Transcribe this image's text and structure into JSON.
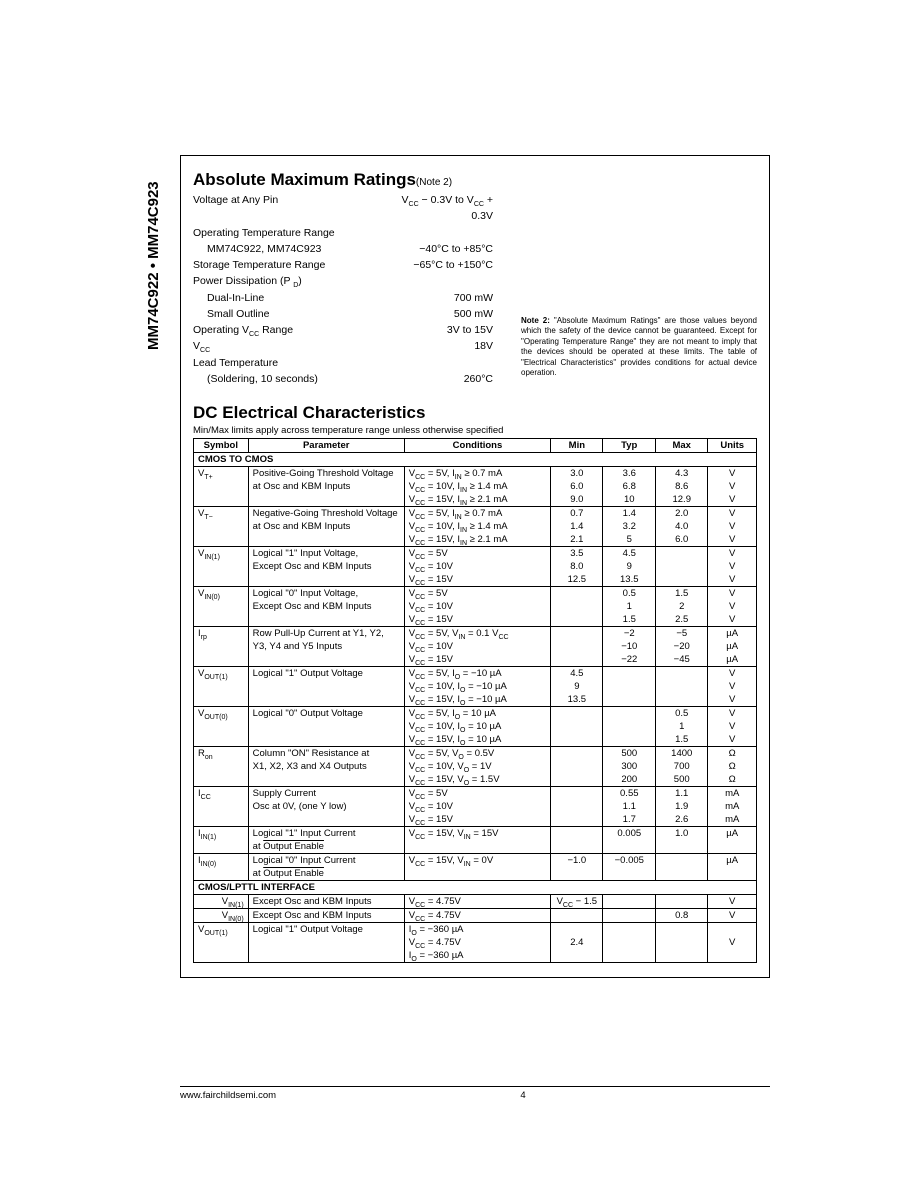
{
  "side_label": "MM74C922 • MM74C923",
  "amr": {
    "title": "Absolute Maximum Ratings",
    "note_ref": "(Note 2)",
    "rows": [
      {
        "label": "Voltage at Any Pin",
        "value_html": "V<sub>CC</sub> − 0.3V to V<sub>CC</sub> + 0.3V",
        "indent": 0
      },
      {
        "label": "Operating Temperature Range",
        "value_html": "",
        "indent": 0
      },
      {
        "label": "MM74C922, MM74C923",
        "value_html": "−40°C to +85°C",
        "indent": 1
      },
      {
        "label": "Storage Temperature Range",
        "value_html": "−65°C to +150°C",
        "indent": 0
      },
      {
        "label_html": "Power Dissipation (P <sub>D</sub>)",
        "value_html": "",
        "indent": 0
      },
      {
        "label": "Dual-In-Line",
        "value_html": "700 mW",
        "indent": 1
      },
      {
        "label": "Small Outline",
        "value_html": "500 mW",
        "indent": 1
      },
      {
        "label_html": "Operating V<sub>CC</sub> Range",
        "value_html": "3V to 15V",
        "indent": 0
      },
      {
        "label_html": "V<sub>CC</sub>",
        "value_html": "18V",
        "indent": 0
      },
      {
        "label": "Lead Temperature",
        "value_html": "",
        "indent": 0
      },
      {
        "label": "(Soldering, 10 seconds)",
        "value_html": "260°C",
        "indent": 1
      }
    ],
    "note2": "<b>Note 2:</b> \"Absolute Maximum Ratings\" are those values beyond which the safety of the device cannot be guaranteed. Except for \"Operating Temperature Range\" they are not meant to imply that the devices should be operated at these limits. The table of \"Electrical Characteristics\" provides conditions for actual device operation."
  },
  "dc": {
    "title": "DC Electrical Characteristics",
    "subhead": "Min/Max limits apply across temperature range unless otherwise specified",
    "headers": [
      "Symbol",
      "Parameter",
      "Conditions",
      "Min",
      "Typ",
      "Max",
      "Units"
    ],
    "groups": [
      {
        "title": "CMOS TO CMOS",
        "rows": [
          {
            "sym_html": "V<sub>T+</sub>",
            "param": "Positive-Going Threshold Voltage",
            "cond_html": "V<sub>CC</sub> = 5V, I<sub>IN</sub> ≥ 0.7 mA",
            "min": "3.0",
            "typ": "3.6",
            "max": "4.3",
            "unit": "V",
            "top": 1
          },
          {
            "sym_html": "",
            "param": "at Osc and KBM Inputs",
            "cond_html": "V<sub>CC</sub> = 10V, I<sub>IN</sub> ≥ 1.4 mA",
            "min": "6.0",
            "typ": "6.8",
            "max": "8.6",
            "unit": "V"
          },
          {
            "sym_html": "",
            "param": "",
            "cond_html": "V<sub>CC</sub> = 15V, I<sub>IN</sub> ≥ 2.1 mA",
            "min": "9.0",
            "typ": "10",
            "max": "12.9",
            "unit": "V"
          },
          {
            "sym_html": "V<sub>T−</sub>",
            "param": "Negative-Going Threshold Voltage",
            "cond_html": "V<sub>CC</sub> = 5V, I<sub>IN</sub> ≥ 0.7 mA",
            "min": "0.7",
            "typ": "1.4",
            "max": "2.0",
            "unit": "V",
            "top": 1
          },
          {
            "sym_html": "",
            "param": "at Osc and KBM Inputs",
            "cond_html": "V<sub>CC</sub> = 10V, I<sub>IN</sub> ≥ 1.4 mA",
            "min": "1.4",
            "typ": "3.2",
            "max": "4.0",
            "unit": "V"
          },
          {
            "sym_html": "",
            "param": "",
            "cond_html": "V<sub>CC</sub> = 15V, I<sub>IN</sub> ≥ 2.1 mA",
            "min": "2.1",
            "typ": "5",
            "max": "6.0",
            "unit": "V"
          },
          {
            "sym_html": "V<sub>IN(1)</sub>",
            "param": "Logical \"1\" Input Voltage,",
            "cond_html": "V<sub>CC</sub> = 5V",
            "min": "3.5",
            "typ": "4.5",
            "max": "",
            "unit": "V",
            "top": 1
          },
          {
            "sym_html": "",
            "param": "Except Osc and KBM Inputs",
            "cond_html": "V<sub>CC</sub> = 10V",
            "min": "8.0",
            "typ": "9",
            "max": "",
            "unit": "V"
          },
          {
            "sym_html": "",
            "param": "",
            "cond_html": "V<sub>CC</sub> = 15V",
            "min": "12.5",
            "typ": "13.5",
            "max": "",
            "unit": "V"
          },
          {
            "sym_html": "V<sub>IN(0)</sub>",
            "param": "Logical \"0\" Input Voltage,",
            "cond_html": "V<sub>CC</sub> = 5V",
            "min": "",
            "typ": "0.5",
            "max": "1.5",
            "unit": "V",
            "top": 1
          },
          {
            "sym_html": "",
            "param": "Except Osc and KBM Inputs",
            "cond_html": "V<sub>CC</sub> = 10V",
            "min": "",
            "typ": "1",
            "max": "2",
            "unit": "V"
          },
          {
            "sym_html": "",
            "param": "",
            "cond_html": "V<sub>CC</sub> = 15V",
            "min": "",
            "typ": "1.5",
            "max": "2.5",
            "unit": "V"
          },
          {
            "sym_html": "I<sub>rp</sub>",
            "param": "Row Pull-Up Current at Y1, Y2,",
            "cond_html": "V<sub>CC</sub> = 5V, V<sub>IN</sub> = 0.1 V<sub>CC</sub>",
            "min": "",
            "typ": "−2",
            "max": "−5",
            "unit": "µA",
            "top": 1
          },
          {
            "sym_html": "",
            "param": "Y3, Y4 and Y5 Inputs",
            "cond_html": "V<sub>CC</sub> = 10V",
            "min": "",
            "typ": "−10",
            "max": "−20",
            "unit": "µA"
          },
          {
            "sym_html": "",
            "param": "",
            "cond_html": "V<sub>CC</sub> = 15V",
            "min": "",
            "typ": "−22",
            "max": "−45",
            "unit": "µA"
          },
          {
            "sym_html": "V<sub>OUT(1)</sub>",
            "param": "Logical \"1\" Output Voltage",
            "cond_html": "V<sub>CC</sub> = 5V, I<sub>O</sub> = −10 µA",
            "min": "4.5",
            "typ": "",
            "max": "",
            "unit": "V",
            "top": 1
          },
          {
            "sym_html": "",
            "param": "",
            "cond_html": "V<sub>CC</sub> = 10V, I<sub>O</sub> = −10 µA",
            "min": "9",
            "typ": "",
            "max": "",
            "unit": "V"
          },
          {
            "sym_html": "",
            "param": "",
            "cond_html": "V<sub>CC</sub> = 15V, I<sub>O</sub> = −10 µA",
            "min": "13.5",
            "typ": "",
            "max": "",
            "unit": "V"
          },
          {
            "sym_html": "V<sub>OUT(0)</sub>",
            "param": "Logical \"0\" Output Voltage",
            "cond_html": "V<sub>CC</sub> = 5V, I<sub>O</sub> = 10 µA",
            "min": "",
            "typ": "",
            "max": "0.5",
            "unit": "V",
            "top": 1
          },
          {
            "sym_html": "",
            "param": "",
            "cond_html": "V<sub>CC</sub> = 10V, I<sub>O</sub> = 10 µA",
            "min": "",
            "typ": "",
            "max": "1",
            "unit": "V"
          },
          {
            "sym_html": "",
            "param": "",
            "cond_html": "V<sub>CC</sub> = 15V, I<sub>O</sub> = 10 µA",
            "min": "",
            "typ": "",
            "max": "1.5",
            "unit": "V"
          },
          {
            "sym_html": "R<sub>on</sub>",
            "param": "Column \"ON\" Resistance at",
            "cond_html": "V<sub>CC</sub> = 5V, V<sub>O</sub> = 0.5V",
            "min": "",
            "typ": "500",
            "max": "1400",
            "unit": "Ω",
            "top": 1
          },
          {
            "sym_html": "",
            "param": "X1, X2, X3 and X4 Outputs",
            "cond_html": "V<sub>CC</sub> = 10V, V<sub>O</sub> = 1V",
            "min": "",
            "typ": "300",
            "max": "700",
            "unit": "Ω"
          },
          {
            "sym_html": "",
            "param": "",
            "cond_html": "V<sub>CC</sub> = 15V, V<sub>O</sub> = 1.5V",
            "min": "",
            "typ": "200",
            "max": "500",
            "unit": "Ω"
          },
          {
            "sym_html": "I<sub>CC</sub>",
            "param": "Supply Current",
            "cond_html": "V<sub>CC</sub> = 5V",
            "min": "",
            "typ": "0.55",
            "max": "1.1",
            "unit": "mA",
            "top": 1
          },
          {
            "sym_html": "",
            "param": "Osc at 0V, (one Y low)",
            "cond_html": "V<sub>CC</sub> = 10V",
            "min": "",
            "typ": "1.1",
            "max": "1.9",
            "unit": "mA"
          },
          {
            "sym_html": "",
            "param": "",
            "cond_html": "V<sub>CC</sub> = 15V",
            "min": "",
            "typ": "1.7",
            "max": "2.6",
            "unit": "mA"
          },
          {
            "sym_html": "I<sub>IN(1)</sub>",
            "param": "Logical \"1\" Input Current",
            "cond_html": "V<sub>CC</sub> = 15V, V<sub>IN</sub> = 15V",
            "min": "",
            "typ": "0.005",
            "max": "1.0",
            "unit": "µA",
            "top": 1
          },
          {
            "sym_html": "",
            "param_html": "at <span class='overline'>Output Enable</span>",
            "cond_html": "",
            "min": "",
            "typ": "",
            "max": "",
            "unit": ""
          },
          {
            "sym_html": "I<sub>IN(0)</sub>",
            "param": "Logical \"0\" Input Current",
            "cond_html": "V<sub>CC</sub> = 15V, V<sub>IN</sub> = 0V",
            "min": "−1.0",
            "typ": "−0.005",
            "max": "",
            "unit": "µA",
            "top": 1
          },
          {
            "sym_html": "",
            "param_html": "at <span class='overline'>Output Enable</span>",
            "cond_html": "",
            "min": "",
            "typ": "",
            "max": "",
            "unit": ""
          }
        ]
      },
      {
        "title": "CMOS/LPTTL INTERFACE",
        "rows": [
          {
            "sym_html": "V<sub>IN(1)</sub>",
            "param": "Except Osc and KBM Inputs",
            "cond_html": "V<sub>CC</sub> = 4.75V",
            "min_html": "V<sub>CC</sub> − 1.5",
            "typ": "",
            "max": "",
            "unit": "V",
            "top": 1,
            "sym_align": "right"
          },
          {
            "sym_html": "V<sub>IN(0)</sub>",
            "param": "Except Osc and KBM Inputs",
            "cond_html": "V<sub>CC</sub> = 4.75V",
            "min": "",
            "typ": "",
            "max": "0.8",
            "unit": "V",
            "top": 1,
            "sym_align": "right"
          },
          {
            "sym_html": "V<sub>OUT(1)</sub>",
            "param": "Logical \"1\" Output Voltage",
            "cond_html": "I<sub>O</sub> = −360 µA",
            "min": "",
            "typ": "",
            "max": "",
            "unit": "",
            "top": 1
          },
          {
            "sym_html": "",
            "param": "",
            "cond_html": "V<sub>CC</sub> = 4.75V",
            "min": "2.4",
            "typ": "",
            "max": "",
            "unit": "V"
          },
          {
            "sym_html": "",
            "param": "",
            "cond_html": "I<sub>O</sub> = −360 µA",
            "min": "",
            "typ": "",
            "max": "",
            "unit": "",
            "last": 1
          }
        ]
      }
    ]
  },
  "footer": {
    "url": "www.fairchildsemi.com",
    "page": "4"
  }
}
